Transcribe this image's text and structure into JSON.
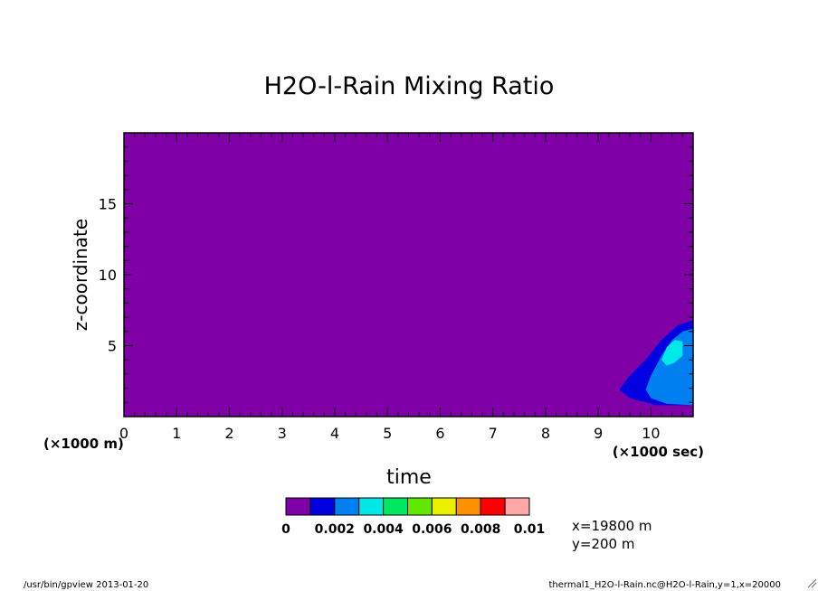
{
  "chart_data": {
    "type": "heatmap",
    "title": "H2O-l-Rain Mixing Ratio",
    "xlabel": "time",
    "ylabel": "z-coordinate",
    "x_unit": "(×1000 sec)",
    "y_unit": "(×1000 m)",
    "xlim": [
      0,
      10.8
    ],
    "ylim": [
      0,
      20
    ],
    "x_ticks": [
      0,
      1,
      2,
      3,
      4,
      5,
      6,
      7,
      8,
      9,
      10
    ],
    "y_ticks": [
      5,
      10,
      15
    ],
    "background_level": 0,
    "contours": [
      {
        "level": 0.001,
        "color": "#0000e0",
        "points": [
          [
            9.4,
            1.9
          ],
          [
            9.6,
            2.9
          ],
          [
            9.9,
            4.0
          ],
          [
            10.2,
            5.4
          ],
          [
            10.5,
            6.4
          ],
          [
            10.8,
            6.8
          ],
          [
            10.8,
            0.8
          ],
          [
            10.1,
            0.8
          ],
          [
            9.6,
            1.3
          ]
        ]
      },
      {
        "level": 0.002,
        "color": "#0080f0",
        "points": [
          [
            9.9,
            1.9
          ],
          [
            10.0,
            2.9
          ],
          [
            10.2,
            4.3
          ],
          [
            10.4,
            5.4
          ],
          [
            10.6,
            6.0
          ],
          [
            10.8,
            6.2
          ],
          [
            10.8,
            0.8
          ],
          [
            10.3,
            0.9
          ],
          [
            10.0,
            1.3
          ]
        ]
      },
      {
        "level": 0.003,
        "color": "#00e8e8",
        "points": [
          [
            10.2,
            4.0
          ],
          [
            10.3,
            4.9
          ],
          [
            10.45,
            5.4
          ],
          [
            10.6,
            5.3
          ],
          [
            10.6,
            4.3
          ],
          [
            10.45,
            3.8
          ],
          [
            10.3,
            3.6
          ]
        ]
      }
    ],
    "colorbar": {
      "colors": [
        "#8000a8",
        "#0000e0",
        "#0080f0",
        "#00e8e8",
        "#00e860",
        "#60e800",
        "#e8f000",
        "#ff9000",
        "#ff0000",
        "#ffa8a8"
      ],
      "labels": [
        "0",
        "0.002",
        "0.004",
        "0.006",
        "0.008",
        "0.01"
      ]
    }
  },
  "annotations": {
    "position_x": "x=19800 m",
    "position_y": "y=200 m",
    "footer_left": "/usr/bin/gpview  2013-01-20",
    "footer_right": "thermal1_H2O-l-Rain.nc@H2O-l-Rain,y=1,x=20000"
  }
}
